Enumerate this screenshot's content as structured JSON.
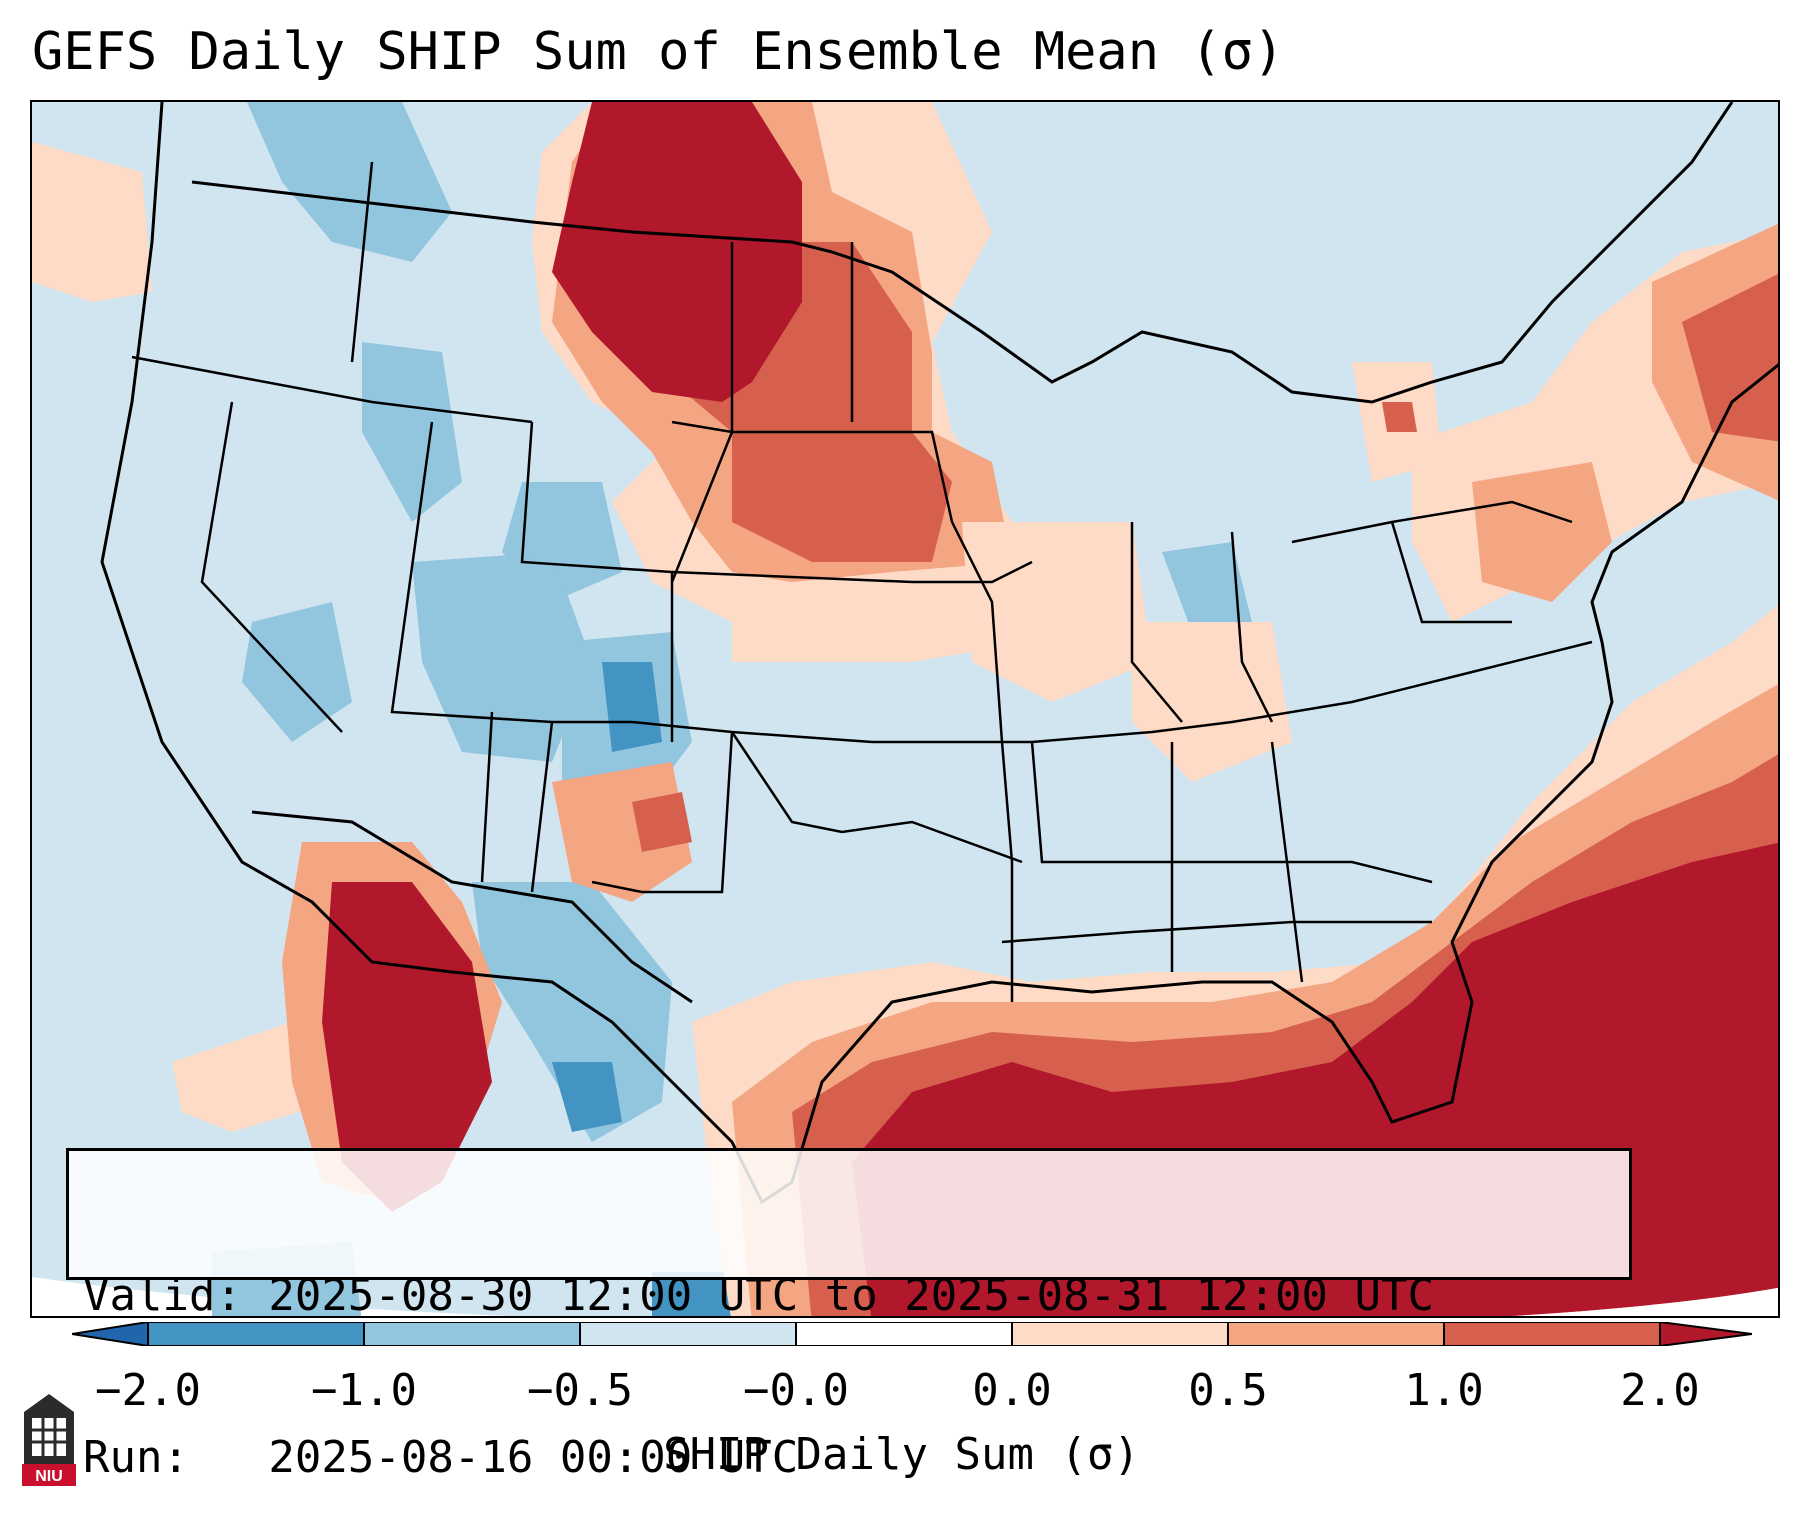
{
  "title": "GEFS Daily SHIP Sum of Ensemble Mean (σ)",
  "map": {
    "region": "Contiguous United States",
    "colors": {
      "bin_lt_-2": "#2166ac",
      "bin_-2_-1": "#4393c3",
      "bin_-1_-0.5": "#92c5de",
      "bin_-0.5_0": "#d1e5f0",
      "bin_0_0.5": "#fddbc7",
      "bin_0.5_1": "#f4a582",
      "bin_1_2": "#d6604d",
      "bin_gt_2": "#b2182b",
      "outline": "#000000"
    }
  },
  "info": {
    "valid_line": "Valid: 2025-08-30 12:00 UTC to 2025-08-31 12:00 UTC",
    "run_line": "Run:   2025-08-16 00:00 UTC"
  },
  "colorbar": {
    "ticks": [
      "−2.0",
      "−1.0",
      "−0.5",
      "−0.0",
      "0.0",
      "0.5",
      "1.0",
      "2.0"
    ],
    "label": "SHIP Daily Sum (σ)"
  },
  "logo": {
    "text": "NIU"
  }
}
